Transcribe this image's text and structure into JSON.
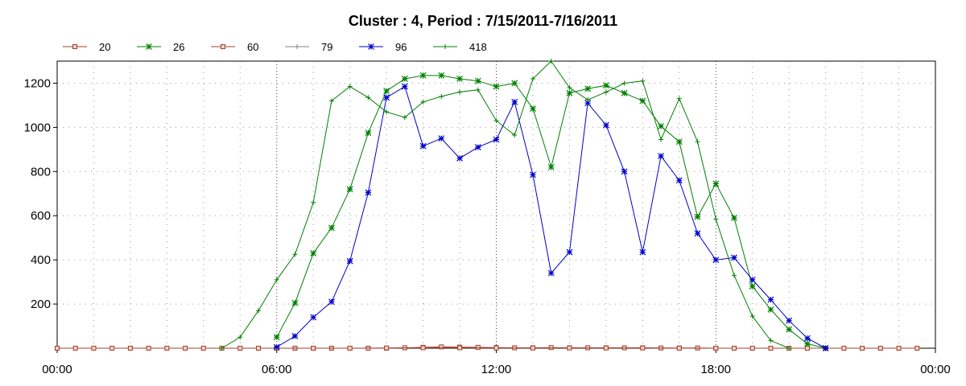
{
  "chart_data": {
    "type": "line",
    "title": "Cluster : 4, Period : 7/15/2011-7/16/2011",
    "xlabel": "",
    "ylabel": "",
    "x_unit": "hour of day",
    "xlim": [
      0,
      24
    ],
    "ylim": [
      0,
      1300
    ],
    "x_ticks": [
      {
        "value": 0,
        "label": "00:00"
      },
      {
        "value": 6,
        "label": "06:00"
      },
      {
        "value": 12,
        "label": "12:00"
      },
      {
        "value": 18,
        "label": "18:00"
      },
      {
        "value": 24,
        "label": "00:00"
      }
    ],
    "y_ticks": [
      {
        "value": 200,
        "label": "200"
      },
      {
        "value": 400,
        "label": "400"
      },
      {
        "value": 600,
        "label": "600"
      },
      {
        "value": 800,
        "label": "800"
      },
      {
        "value": 1000,
        "label": "1000"
      },
      {
        "value": 1200,
        "label": "1200"
      }
    ],
    "grid": true,
    "legend_position": "top-left",
    "series": [
      {
        "name": "20",
        "color": "#a0402a",
        "marker": "square",
        "points": [
          [
            0,
            0
          ],
          [
            0.5,
            0
          ],
          [
            1,
            0
          ],
          [
            1.5,
            0
          ],
          [
            2,
            0
          ],
          [
            2.5,
            0
          ],
          [
            3,
            0
          ],
          [
            3.5,
            0
          ],
          [
            4,
            0
          ],
          [
            4.5,
            0
          ],
          [
            5,
            0
          ],
          [
            5.5,
            0
          ],
          [
            6,
            0
          ],
          [
            6.5,
            0
          ],
          [
            7,
            0
          ],
          [
            7.5,
            0
          ],
          [
            8,
            0
          ],
          [
            8.5,
            0
          ],
          [
            9,
            0
          ],
          [
            9.5,
            2
          ],
          [
            10,
            4
          ],
          [
            10.5,
            6
          ],
          [
            11,
            5
          ],
          [
            11.5,
            4
          ],
          [
            12,
            3
          ],
          [
            12.5,
            2
          ],
          [
            13,
            2
          ],
          [
            13.5,
            3
          ],
          [
            14,
            2
          ],
          [
            14.5,
            2
          ],
          [
            15,
            2
          ],
          [
            15.5,
            2
          ],
          [
            16,
            2
          ],
          [
            16.5,
            1
          ],
          [
            17,
            1
          ],
          [
            17.5,
            1
          ],
          [
            18,
            0
          ],
          [
            18.5,
            0
          ],
          [
            19,
            0
          ],
          [
            19.5,
            0
          ],
          [
            20,
            0
          ],
          [
            20.5,
            0
          ],
          [
            21,
            0
          ],
          [
            21.5,
            0
          ],
          [
            22,
            0
          ],
          [
            22.5,
            0
          ],
          [
            23,
            0
          ],
          [
            23.5,
            0
          ]
        ]
      },
      {
        "name": "26",
        "color": "#008000",
        "marker": "star",
        "points": [
          [
            6,
            50
          ],
          [
            6.5,
            205
          ],
          [
            7,
            430
          ],
          [
            7.5,
            545
          ],
          [
            8,
            720
          ],
          [
            8.5,
            975
          ],
          [
            9,
            1165
          ],
          [
            9.5,
            1220
          ],
          [
            10,
            1235
          ],
          [
            10.5,
            1235
          ],
          [
            11,
            1220
          ],
          [
            11.5,
            1210
          ],
          [
            12,
            1185
          ],
          [
            12.5,
            1200
          ],
          [
            13,
            1085
          ],
          [
            13.5,
            820
          ],
          [
            14,
            1155
          ],
          [
            14.5,
            1175
          ],
          [
            15,
            1190
          ],
          [
            15.5,
            1155
          ],
          [
            16,
            1120
          ],
          [
            16.5,
            1005
          ],
          [
            17,
            935
          ],
          [
            17.5,
            595
          ],
          [
            18,
            745
          ],
          [
            18.5,
            590
          ],
          [
            19,
            280
          ],
          [
            19.5,
            175
          ],
          [
            20,
            85
          ],
          [
            20.5,
            20
          ],
          [
            21,
            0
          ]
        ]
      },
      {
        "name": "60",
        "color": "#a0402a",
        "marker": "square",
        "points": [
          [
            6,
            0
          ],
          [
            7,
            0
          ],
          [
            8,
            0
          ],
          [
            9,
            1
          ],
          [
            10,
            2
          ],
          [
            11,
            2
          ],
          [
            12,
            1
          ],
          [
            13,
            1
          ],
          [
            14,
            1
          ],
          [
            15,
            1
          ],
          [
            16,
            1
          ],
          [
            17,
            0
          ],
          [
            18,
            0
          ]
        ]
      },
      {
        "name": "79",
        "color": "#808080",
        "marker": "plus",
        "points": []
      },
      {
        "name": "96",
        "color": "#0000cc",
        "marker": "star",
        "points": [
          [
            6,
            5
          ],
          [
            6.5,
            55
          ],
          [
            7,
            140
          ],
          [
            7.5,
            210
          ],
          [
            8,
            395
          ],
          [
            8.5,
            705
          ],
          [
            9,
            1135
          ],
          [
            9.5,
            1185
          ],
          [
            10,
            915
          ],
          [
            10.5,
            950
          ],
          [
            11,
            860
          ],
          [
            11.5,
            910
          ],
          [
            12,
            945
          ],
          [
            12.5,
            1115
          ],
          [
            13,
            785
          ],
          [
            13.5,
            340
          ],
          [
            14,
            435
          ],
          [
            14.5,
            1110
          ],
          [
            15,
            1010
          ],
          [
            15.5,
            800
          ],
          [
            16,
            435
          ],
          [
            16.5,
            870
          ],
          [
            17,
            760
          ],
          [
            17.5,
            520
          ],
          [
            18,
            400
          ],
          [
            18.5,
            410
          ],
          [
            19,
            310
          ],
          [
            19.5,
            220
          ],
          [
            20,
            125
          ],
          [
            20.5,
            45
          ],
          [
            21,
            0
          ]
        ]
      },
      {
        "name": "418",
        "color": "#008000",
        "marker": "plus",
        "points": [
          [
            4.5,
            0
          ],
          [
            5,
            50
          ],
          [
            5.5,
            170
          ],
          [
            6,
            310
          ],
          [
            6.5,
            425
          ],
          [
            7,
            660
          ],
          [
            7.5,
            1120
          ],
          [
            8,
            1185
          ],
          [
            8.5,
            1135
          ],
          [
            9,
            1070
          ],
          [
            9.5,
            1045
          ],
          [
            10,
            1115
          ],
          [
            10.5,
            1140
          ],
          [
            11,
            1160
          ],
          [
            11.5,
            1170
          ],
          [
            12,
            1030
          ],
          [
            12.5,
            965
          ],
          [
            13,
            1220
          ],
          [
            13.5,
            1300
          ],
          [
            14,
            1180
          ],
          [
            14.5,
            1125
          ],
          [
            15,
            1160
          ],
          [
            15.5,
            1200
          ],
          [
            16,
            1210
          ],
          [
            16.5,
            945
          ],
          [
            17,
            1130
          ],
          [
            17.5,
            935
          ],
          [
            18,
            585
          ],
          [
            18.5,
            330
          ],
          [
            19,
            145
          ],
          [
            19.5,
            35
          ],
          [
            20,
            0
          ]
        ]
      }
    ]
  }
}
